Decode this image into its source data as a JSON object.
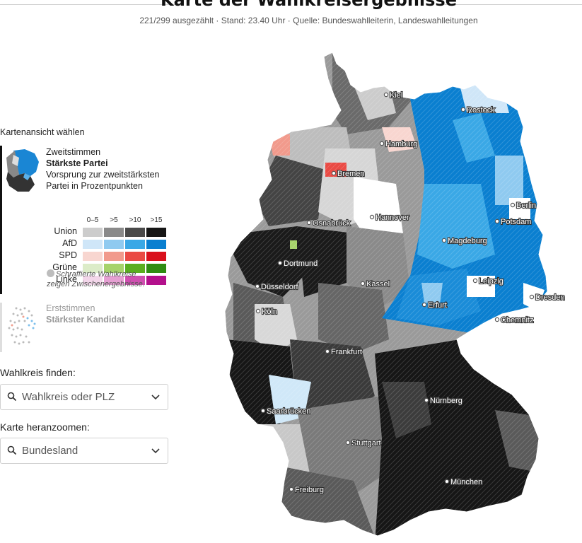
{
  "header": {
    "title": "Karte der Wahlkreisergebnisse",
    "subtitle": "221/299 ausgezählt · Stand: 23.40 Uhr · Quelle: Bundeswahlleiterin, Landeswahlleitungen"
  },
  "view_selector": {
    "label": "Kartenansicht wählen",
    "option_primary": {
      "line1": "Zweitstimmen",
      "line2": "Stärkste Partei",
      "line3": "Vorsprung zur zweitstärksten",
      "line4": "Partei in Prozentpunkten"
    },
    "option_secondary": {
      "line1": "Erststimmen",
      "line2": "Stärkster Kandidat"
    }
  },
  "legend": {
    "columns": [
      "0–5",
      ">5",
      ">10",
      ">15"
    ],
    "rows": [
      {
        "party": "Union",
        "colors": [
          "#cccccc",
          "#8a8a8a",
          "#4a4a4a",
          "#161616"
        ]
      },
      {
        "party": "AfD",
        "colors": [
          "#cfe6f8",
          "#8fcaf0",
          "#3aa8e6",
          "#0a7fd0"
        ]
      },
      {
        "party": "SPD",
        "colors": [
          "#f8d6d0",
          "#f19a8c",
          "#ea4a44",
          "#d9101c"
        ]
      },
      {
        "party": "Grüne",
        "colors": [
          "#dcecc8",
          "#a6d36a",
          "#5aae1f",
          "#2f8c12"
        ]
      },
      {
        "party": "Linke",
        "colors": [
          "#f3d6ea",
          "#e59fd2",
          "#cf4fb0",
          "#b3108c"
        ]
      }
    ],
    "hint_line1": "Schraffierte Wahlkreise",
    "hint_line2": "zeigen Zwischenergebnisse."
  },
  "search": {
    "label": "Wahlkreis finden:",
    "placeholder": "Wahlkreis oder PLZ"
  },
  "zoom": {
    "label": "Karte heranzoomen:",
    "placeholder": "Bundesland"
  },
  "map": {
    "cities": [
      "Kiel",
      "Rostock",
      "Hamburg",
      "Bremen",
      "Berlin",
      "Potsdam",
      "Hannover",
      "Osnabrück",
      "Magdeburg",
      "Dortmund",
      "Düsseldorf",
      "Köln",
      "Kassel",
      "Leipzig",
      "Dresden",
      "Erfurt",
      "Chemnitz",
      "Frankfurt",
      "Nürnberg",
      "Saarbrücken",
      "Stuttgart",
      "München",
      "Freiburg"
    ]
  }
}
